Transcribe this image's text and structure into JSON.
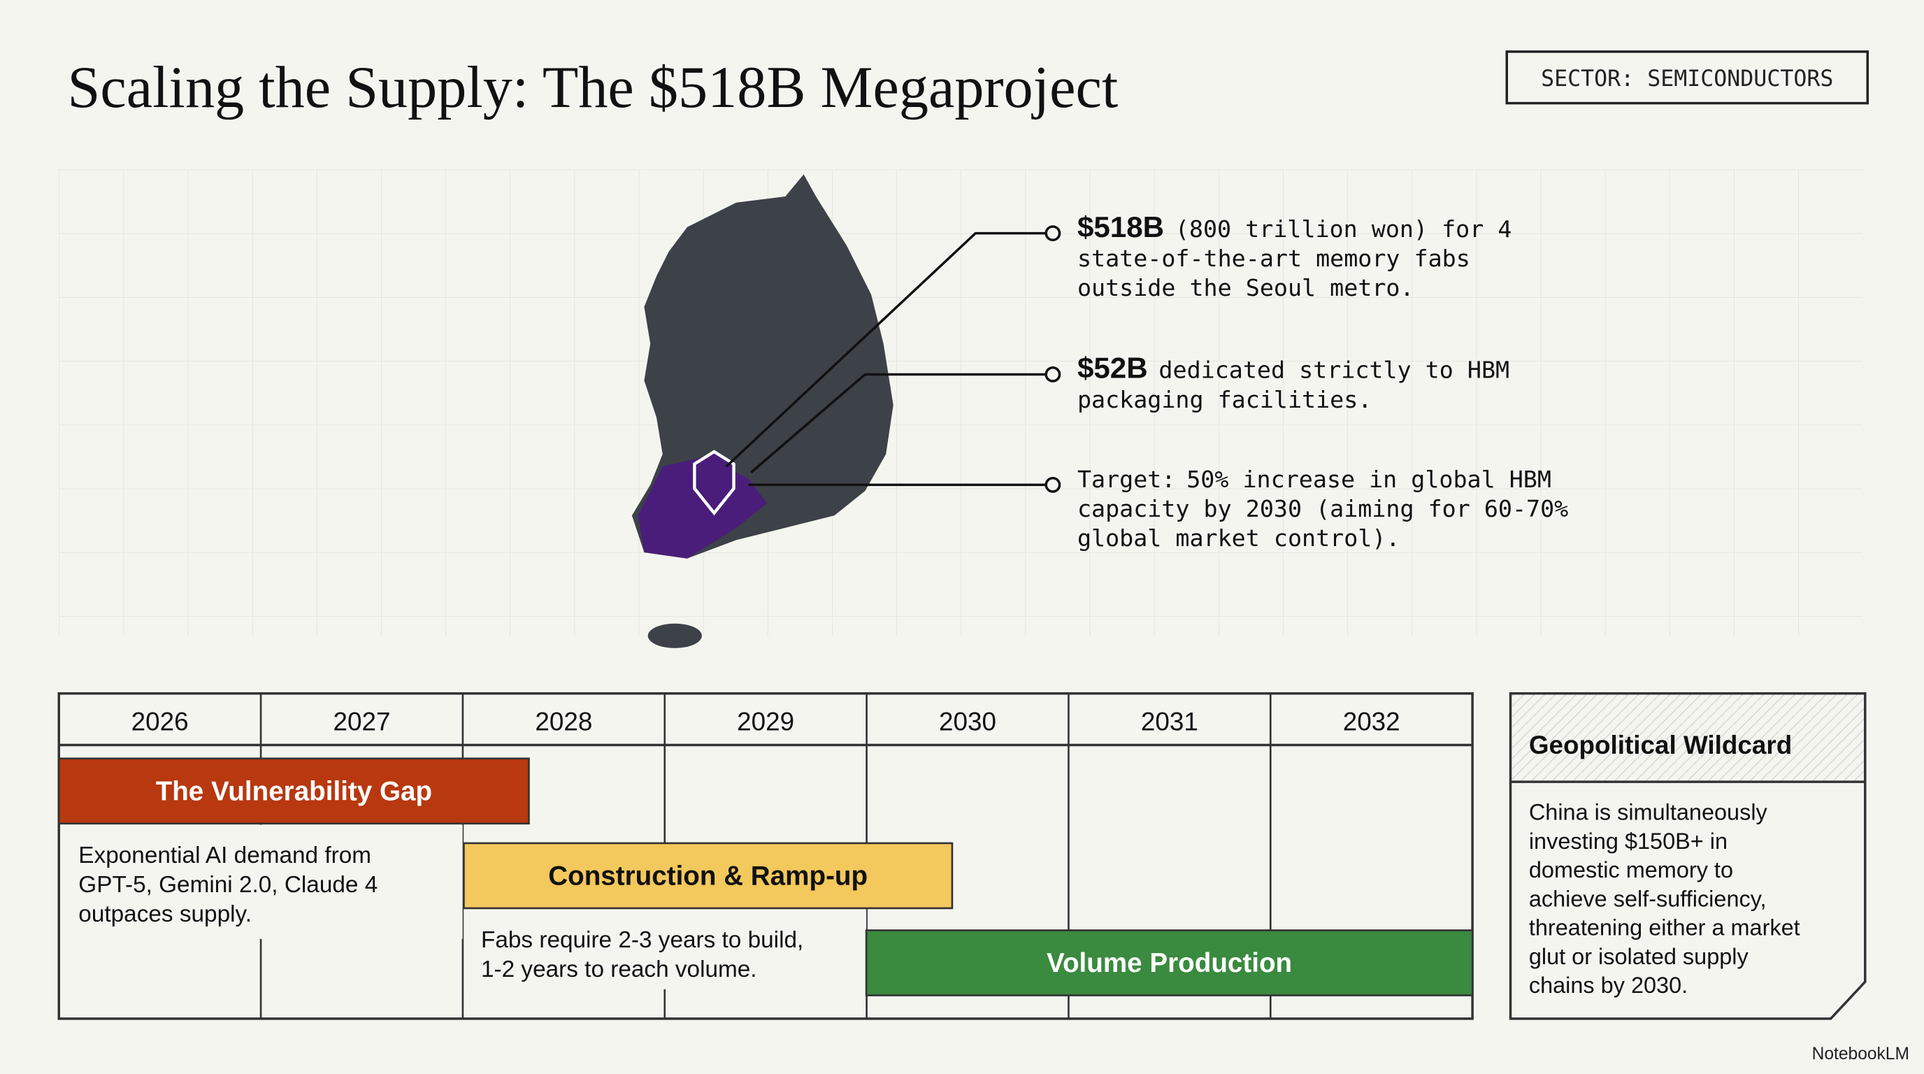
{
  "header": {
    "title": "Scaling the Supply: The $518B Megaproject",
    "tag": "SECTOR: SEMICONDUCTORS"
  },
  "callouts": [
    {
      "lead": "$518B",
      "lines": [
        "(800 trillion won) for 4",
        "state-of-the-art memory fabs",
        "outside the Seoul metro."
      ]
    },
    {
      "lead": "$52B",
      "lines": [
        "dedicated strictly to HBM",
        "packaging facilities."
      ]
    },
    {
      "lead": "Target:",
      "lines": [
        "50% increase in global HBM",
        "capacity by 2030 (aiming for 60-70%",
        "global market control)."
      ]
    }
  ],
  "timeline": {
    "years": [
      "2026",
      "2027",
      "2028",
      "2029",
      "2030",
      "2031",
      "2032"
    ],
    "phases": [
      {
        "label": "The Vulnerability Gap",
        "note": [
          "Exponential AI demand from",
          "GPT-5, Gemini 2.0, Claude 4",
          "outpaces supply."
        ]
      },
      {
        "label": "Construction & Ramp-up",
        "note": [
          "Fabs require 2-3 years to build,",
          "1-2 years to reach volume."
        ]
      },
      {
        "label": "Volume Production",
        "note": []
      }
    ]
  },
  "wildcard": {
    "title": "Geopolitical Wildcard",
    "lines": [
      "China is simultaneously",
      "investing $150B+ in",
      "domestic memory to",
      "achieve self-sufficiency,",
      "threatening either a market",
      "glut or isolated supply",
      "chains by 2030."
    ]
  },
  "footer": {
    "brand": "NotebookLM"
  }
}
